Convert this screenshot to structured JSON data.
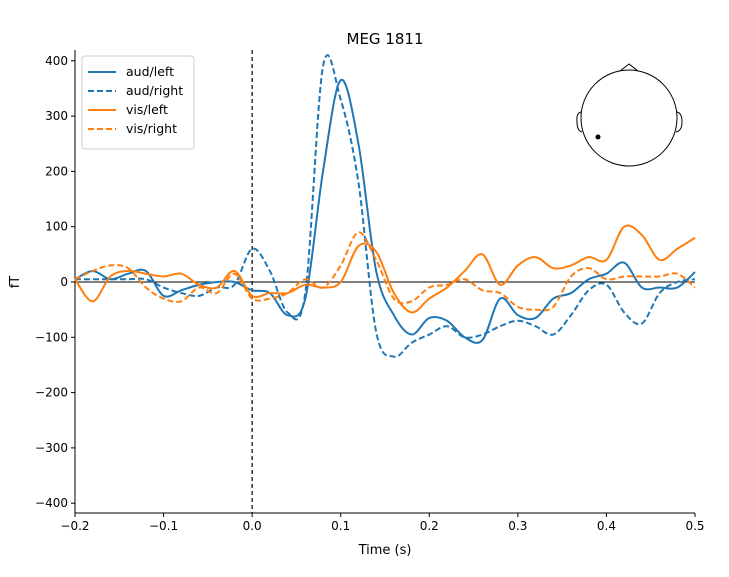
{
  "chart_data": {
    "type": "line",
    "title": "MEG 1811",
    "xlabel": "Time (s)",
    "ylabel": "fT",
    "xlim": [
      -0.2,
      0.5
    ],
    "ylim": [
      -410,
      420
    ],
    "xticks": [
      -0.2,
      -0.1,
      0.0,
      0.1,
      0.2,
      0.3,
      0.4,
      0.5
    ],
    "xtick_labels": [
      "−0.2",
      "−0.1",
      "0.0",
      "0.1",
      "0.2",
      "0.3",
      "0.4",
      "0.5"
    ],
    "yticks": [
      -400,
      -300,
      -200,
      -100,
      0,
      100,
      200,
      300,
      400
    ],
    "ytick_labels": [
      "−400",
      "−300",
      "−200",
      "−100",
      "0",
      "100",
      "200",
      "300",
      "400"
    ],
    "grid": false,
    "legend_position": "top-left",
    "x": [
      -0.2,
      -0.18,
      -0.16,
      -0.14,
      -0.12,
      -0.1,
      -0.08,
      -0.06,
      -0.04,
      -0.02,
      0.0,
      0.02,
      0.04,
      0.06,
      0.08,
      0.1,
      0.12,
      0.14,
      0.16,
      0.18,
      0.2,
      0.22,
      0.24,
      0.26,
      0.28,
      0.3,
      0.32,
      0.34,
      0.36,
      0.38,
      0.4,
      0.42,
      0.44,
      0.46,
      0.48,
      0.5
    ],
    "series": [
      {
        "name": "aud/left",
        "color": "#1f77b4",
        "dash": false,
        "values": [
          5,
          20,
          5,
          15,
          20,
          -25,
          -15,
          -5,
          0,
          0,
          -15,
          -20,
          -60,
          -30,
          200,
          365,
          250,
          20,
          -60,
          -95,
          -65,
          -70,
          -100,
          -105,
          -30,
          -60,
          -65,
          -30,
          -20,
          5,
          15,
          35,
          -10,
          -10,
          -10,
          18
        ]
      },
      {
        "name": "aud/right",
        "color": "#1f77b4",
        "dash": true,
        "values": [
          5,
          5,
          5,
          5,
          5,
          -10,
          -20,
          -25,
          -10,
          -5,
          60,
          20,
          -55,
          -20,
          390,
          330,
          180,
          -90,
          -135,
          -110,
          -95,
          -80,
          -100,
          -95,
          -80,
          -70,
          -80,
          -95,
          -60,
          -15,
          -5,
          -55,
          -75,
          -20,
          0,
          5
        ]
      },
      {
        "name": "vis/left",
        "color": "#ff7f0e",
        "dash": false,
        "values": [
          5,
          -35,
          10,
          20,
          15,
          10,
          15,
          -5,
          -10,
          20,
          -25,
          -20,
          -20,
          -5,
          -10,
          0,
          65,
          55,
          -20,
          -55,
          -30,
          -10,
          20,
          50,
          -5,
          30,
          45,
          25,
          30,
          45,
          40,
          100,
          85,
          40,
          60,
          80
        ]
      },
      {
        "name": "vis/right",
        "color": "#ff7f0e",
        "dash": true,
        "values": [
          5,
          20,
          30,
          25,
          -10,
          -30,
          -35,
          -10,
          -20,
          15,
          -30,
          -30,
          -20,
          5,
          -10,
          30,
          90,
          40,
          -30,
          -35,
          -10,
          -5,
          5,
          -15,
          -20,
          -45,
          -50,
          -45,
          10,
          25,
          5,
          10,
          10,
          10,
          15,
          -10
        ]
      }
    ],
    "annotations": [
      "vertical dashed line at t = 0",
      "horizontal line at 0 fT",
      "sensor location head inset (top-right)"
    ]
  }
}
